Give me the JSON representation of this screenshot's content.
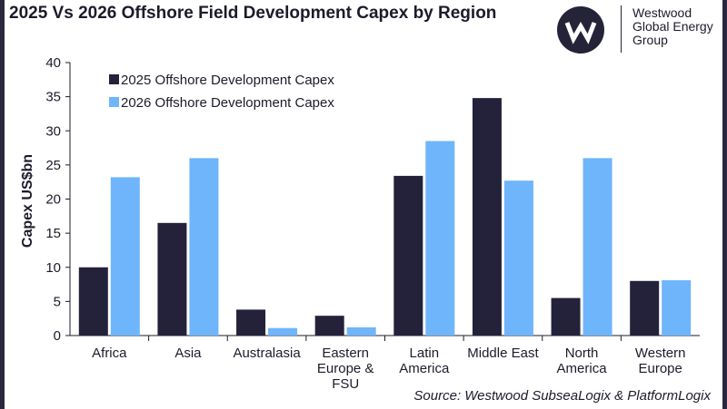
{
  "header": {
    "title": "2025 Vs 2026 Offshore Field Development Capex by Region"
  },
  "logo": {
    "icon": "westwood-w-logo",
    "lines": [
      "Westwood",
      "Global Energy",
      "Group"
    ]
  },
  "source": "Source: Westwood SubseaLogix & PlatformLogix",
  "colors": {
    "series_2025": "#24223a",
    "series_2026": "#6fb5fb",
    "axis": "#1c1b2b"
  },
  "chart_data": {
    "type": "bar",
    "title": "2025 Vs 2026 Offshore Field Development Capex by Region",
    "xlabel": "",
    "ylabel": "Capex US$bn",
    "ylim": [
      0,
      40
    ],
    "yticks": [
      0,
      5,
      10,
      15,
      20,
      25,
      30,
      35,
      40
    ],
    "grid": false,
    "legend_position": "top-left",
    "categories": [
      [
        "Africa"
      ],
      [
        "Asia"
      ],
      [
        "Australasia"
      ],
      [
        "Eastern",
        "Europe &",
        "FSU"
      ],
      [
        "Latin",
        "America"
      ],
      [
        "Middle East"
      ],
      [
        "North",
        "America"
      ],
      [
        "Western",
        "Europe"
      ]
    ],
    "series": [
      {
        "name": "2025 Offshore Development Capex",
        "values": [
          10.0,
          16.5,
          3.8,
          2.9,
          23.4,
          34.8,
          5.5,
          8.0
        ]
      },
      {
        "name": "2026 Offshore Development Capex",
        "values": [
          23.2,
          26.0,
          1.1,
          1.2,
          28.5,
          22.7,
          26.0,
          8.1
        ]
      }
    ]
  }
}
